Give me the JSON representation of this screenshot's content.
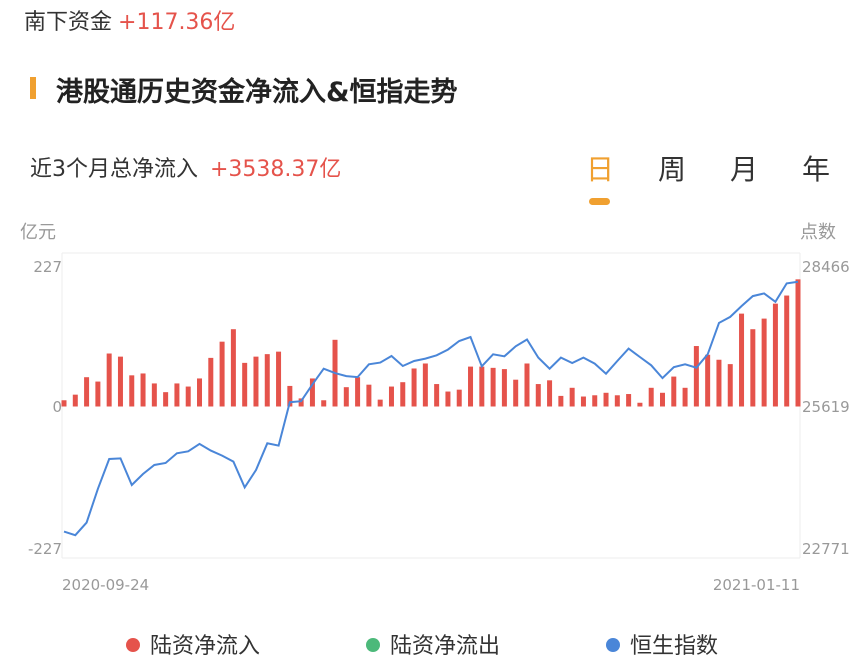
{
  "southbound": {
    "label": "南下资金",
    "value": "+117.36亿"
  },
  "section": {
    "title": "港股通历史资金净流入&恒指走势"
  },
  "summary": {
    "label": "近3个月总净流入",
    "value": "+3538.37亿"
  },
  "tabs": [
    {
      "label": "日",
      "active": true
    },
    {
      "label": "周",
      "active": false
    },
    {
      "label": "月",
      "active": false
    },
    {
      "label": "年",
      "active": false
    }
  ],
  "colors": {
    "accent": "#f0a030",
    "inflow": "#e5534b",
    "outflow": "#4cb97a",
    "index": "#4a86d8"
  },
  "chart_data": {
    "type": "bar+line",
    "left_axis": {
      "unit": "亿元",
      "ticks": [
        "227",
        "0",
        "-227"
      ],
      "range": [
        -227,
        227
      ]
    },
    "right_axis": {
      "unit": "点数",
      "ticks": [
        "28466",
        "25619",
        "22771"
      ],
      "range": [
        22771,
        28466
      ]
    },
    "x_labels": {
      "start": "2020-09-24",
      "end": "2021-01-11"
    },
    "grid": false,
    "legend_position": "bottom",
    "legend": [
      {
        "name": "陆资净流入",
        "color": "#e5534b"
      },
      {
        "name": "陆资净流出",
        "color": "#4cb97a"
      },
      {
        "name": "恒生指数",
        "color": "#4a86d8"
      }
    ],
    "series": [
      {
        "name": "陆资净流入",
        "type": "bar",
        "values": [
          10,
          19,
          47,
          40,
          85,
          80,
          50,
          53,
          37,
          23,
          37,
          32,
          45,
          78,
          104,
          124,
          70,
          80,
          84,
          88,
          33,
          13,
          45,
          10,
          107,
          31,
          47,
          35,
          11,
          32,
          39,
          61,
          69,
          36,
          24,
          27,
          64,
          64,
          62,
          60,
          43,
          69,
          36,
          42,
          17,
          30,
          16,
          18,
          22,
          18,
          20,
          6,
          30,
          22,
          48,
          30,
          97,
          83,
          75,
          68,
          149,
          124,
          141,
          165,
          178,
          204
        ]
      },
      {
        "name": "恒生指数",
        "type": "line",
        "values": [
          23101,
          23029,
          23283,
          23963,
          24563,
          24575,
          24038,
          24260,
          24442,
          24482,
          24676,
          24717,
          24866,
          24731,
          24630,
          24509,
          23990,
          24341,
          24878,
          24832,
          25706,
          25726,
          26063,
          26380,
          26291,
          26231,
          26211,
          26467,
          26501,
          26635,
          26433,
          26534,
          26582,
          26649,
          26764,
          26937,
          27018,
          26427,
          26669,
          26629,
          26830,
          26966,
          26602,
          26380,
          26602,
          26493,
          26602,
          26481,
          26279,
          26534,
          26784,
          26614,
          26447,
          26190,
          26412,
          26467,
          26400,
          26669,
          27301,
          27422,
          27638,
          27840,
          27894,
          27725,
          28096,
          28129
        ]
      }
    ]
  }
}
